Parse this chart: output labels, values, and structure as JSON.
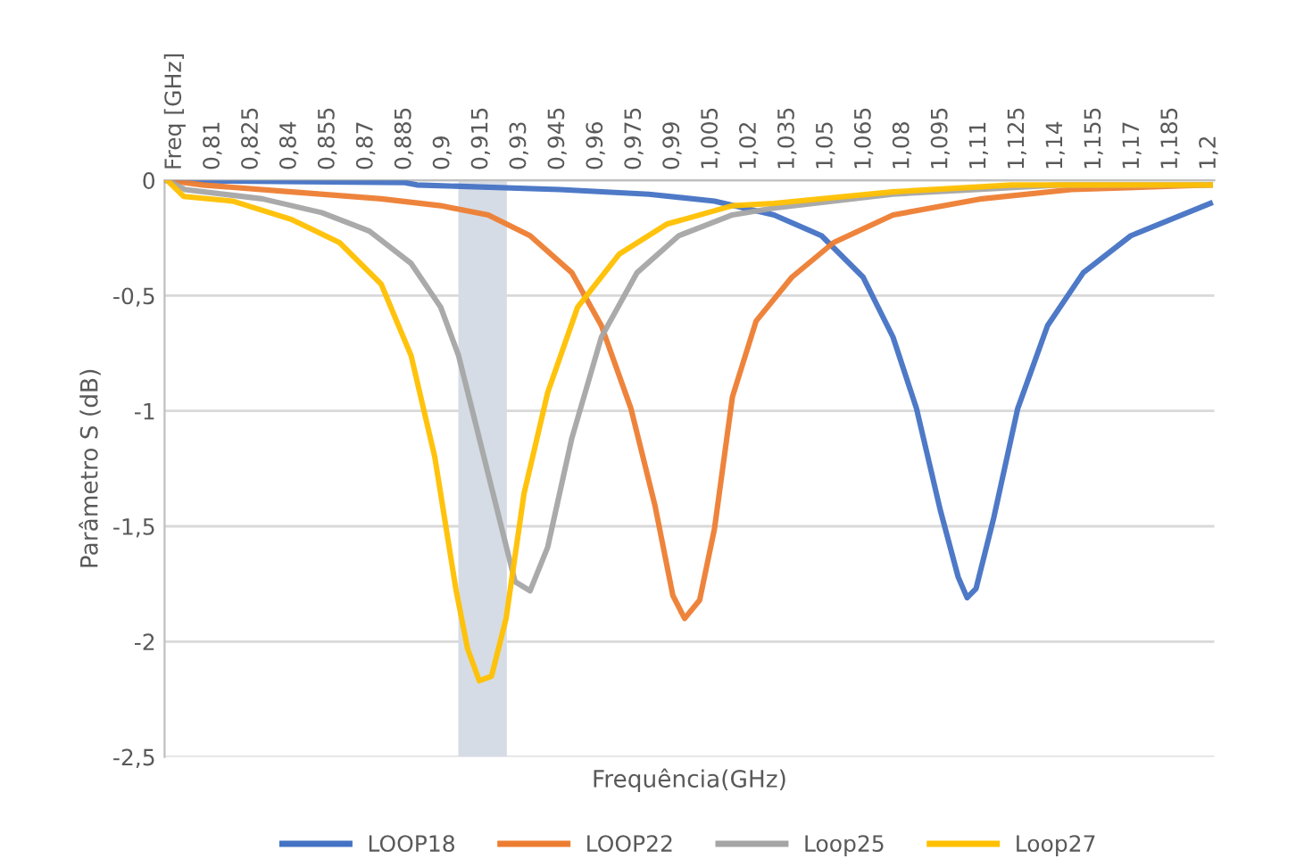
{
  "chart_data": {
    "type": "line",
    "xlabel": "Frequência(GHz)",
    "ylabel": "Parâmetro S (dB)",
    "xlim": [
      0.791,
      1.202
    ],
    "xticks": [
      {
        "value": 0.795,
        "label": "Freq [GHz]"
      },
      {
        "value": 0.81,
        "label": "0,81"
      },
      {
        "value": 0.825,
        "label": "0,825"
      },
      {
        "value": 0.84,
        "label": "0,84"
      },
      {
        "value": 0.855,
        "label": "0,855"
      },
      {
        "value": 0.87,
        "label": "0,87"
      },
      {
        "value": 0.885,
        "label": "0,885"
      },
      {
        "value": 0.9,
        "label": "0,9"
      },
      {
        "value": 0.915,
        "label": "0,915"
      },
      {
        "value": 0.93,
        "label": "0,93"
      },
      {
        "value": 0.945,
        "label": "0,945"
      },
      {
        "value": 0.96,
        "label": "0,96"
      },
      {
        "value": 0.975,
        "label": "0,975"
      },
      {
        "value": 0.99,
        "label": "0,99"
      },
      {
        "value": 1.005,
        "label": "1,005"
      },
      {
        "value": 1.02,
        "label": "1,02"
      },
      {
        "value": 1.035,
        "label": "1,035"
      },
      {
        "value": 1.05,
        "label": "1,05"
      },
      {
        "value": 1.065,
        "label": "1,065"
      },
      {
        "value": 1.08,
        "label": "1,08"
      },
      {
        "value": 1.095,
        "label": "1,095"
      },
      {
        "value": 1.11,
        "label": "1,11"
      },
      {
        "value": 1.125,
        "label": "1,125"
      },
      {
        "value": 1.14,
        "label": "1,14"
      },
      {
        "value": 1.155,
        "label": "1,155"
      },
      {
        "value": 1.17,
        "label": "1,17"
      },
      {
        "value": 1.185,
        "label": "1,185"
      },
      {
        "value": 1.2,
        "label": "1,2"
      }
    ],
    "ylim": [
      -2.5,
      0
    ],
    "yticks": [
      {
        "value": 0,
        "label": "0"
      },
      {
        "value": -0.5,
        "label": "-0,5"
      },
      {
        "value": -1,
        "label": "-1"
      },
      {
        "value": -1.5,
        "label": "-1,5"
      },
      {
        "value": -2,
        "label": "-2"
      },
      {
        "value": -2.5,
        "label": "-2,5"
      }
    ],
    "grid": "y",
    "legend": "bottom",
    "line_style": "solid",
    "marker": "none",
    "bands": [
      {
        "axis": "x",
        "from": 0.906,
        "to": 0.925,
        "color": "#d6dce5"
      }
    ],
    "series": [
      {
        "name": "LOOP18",
        "color": "#4472c4",
        "x": [
          0.792,
          0.8851,
          0.8898,
          0.9457,
          0.9806,
          1.0063,
          1.0296,
          1.0482,
          1.0645,
          1.0762,
          1.0854,
          1.0947,
          1.1017,
          1.1052,
          1.1087,
          1.1157,
          1.125,
          1.1367,
          1.1507,
          1.1693,
          1.2004
        ],
        "values": [
          0,
          -0.01,
          -0.02,
          -0.04,
          -0.06,
          -0.09,
          -0.15,
          -0.24,
          -0.42,
          -0.68,
          -0.99,
          -1.43,
          -1.72,
          -1.81,
          -1.77,
          -1.46,
          -0.99,
          -0.63,
          -0.4,
          -0.24,
          -0.1
        ]
      },
      {
        "name": "LOOP22",
        "color": "#ed7d31",
        "x": [
          0.792,
          0.8059,
          0.8408,
          0.8758,
          0.8991,
          0.9177,
          0.9341,
          0.9504,
          0.962,
          0.9736,
          0.983,
          0.99,
          0.9946,
          1.0005,
          1.0063,
          1.0133,
          1.0226,
          1.0366,
          1.0529,
          1.0762,
          1.1111,
          1.1461,
          1.2004
        ],
        "values": [
          0,
          -0.02,
          -0.05,
          -0.08,
          -0.11,
          -0.15,
          -0.24,
          -0.4,
          -0.63,
          -0.99,
          -1.41,
          -1.8,
          -1.9,
          -1.82,
          -1.51,
          -0.94,
          -0.61,
          -0.42,
          -0.27,
          -0.15,
          -0.08,
          -0.04,
          -0.02
        ]
      },
      {
        "name": "Loop25",
        "color": "#a5a5a5",
        "x": [
          0.792,
          0.799,
          0.8292,
          0.8525,
          0.8712,
          0.8875,
          0.8991,
          0.9061,
          0.9131,
          0.9201,
          0.9282,
          0.9341,
          0.941,
          0.9504,
          0.962,
          0.976,
          0.9923,
          1.0133,
          1.0296,
          1.076,
          1.1414,
          1.2004
        ],
        "values": [
          0,
          -0.04,
          -0.08,
          -0.14,
          -0.22,
          -0.36,
          -0.55,
          -0.76,
          -1.07,
          -1.38,
          -1.74,
          -1.78,
          -1.59,
          -1.12,
          -0.68,
          -0.4,
          -0.24,
          -0.15,
          -0.12,
          -0.06,
          -0.02,
          -0.02
        ]
      },
      {
        "name": "Loop27",
        "color": "#ffc000",
        "x": [
          0.792,
          0.7985,
          0.8176,
          0.8408,
          0.8595,
          0.8758,
          0.8875,
          0.8968,
          0.905,
          0.9096,
          0.9142,
          0.919,
          0.9247,
          0.9317,
          0.941,
          0.9527,
          0.969,
          0.9876,
          1.0133,
          1.0296,
          1.076,
          1.1228,
          1.2004
        ],
        "values": [
          0,
          -0.07,
          -0.09,
          -0.17,
          -0.27,
          -0.45,
          -0.76,
          -1.2,
          -1.77,
          -2.03,
          -2.17,
          -2.15,
          -1.9,
          -1.36,
          -0.92,
          -0.55,
          -0.32,
          -0.19,
          -0.11,
          -0.1,
          -0.05,
          -0.02,
          -0.02
        ]
      }
    ]
  }
}
